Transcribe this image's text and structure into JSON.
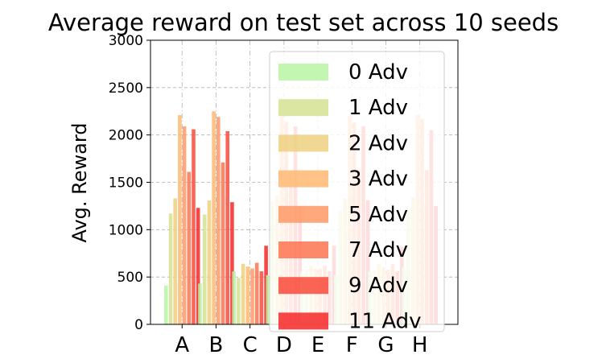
{
  "chart_data": {
    "type": "bar",
    "title": "Average reward on test set across 10 seeds",
    "xlabel": "",
    "ylabel": "Avg. Reward",
    "ylim": [
      0,
      3000
    ],
    "yticks": [
      0,
      500,
      1000,
      1500,
      2000,
      2500,
      3000
    ],
    "grid": true,
    "legend_position": "top-right",
    "categories": [
      "A",
      "B",
      "C",
      "D",
      "E",
      "F",
      "G",
      "H"
    ],
    "series": [
      {
        "name": "0 Adv",
        "color": "#b9f5a3",
        "values": [
          410,
          430,
          560,
          520,
          550,
          520,
          560,
          600
        ]
      },
      {
        "name": "1 Adv",
        "color": "#d4e291",
        "values": [
          1170,
          1160,
          490,
          1300,
          580,
          1200,
          570,
          1200
        ]
      },
      {
        "name": "2 Adv",
        "color": "#edd080",
        "values": [
          1330,
          1310,
          640,
          1360,
          620,
          1330,
          640,
          1340
        ]
      },
      {
        "name": "3 Adv",
        "color": "#ffb873",
        "values": [
          2210,
          2250,
          610,
          2200,
          590,
          2200,
          600,
          2210
        ]
      },
      {
        "name": "5 Adv",
        "color": "#ff9966",
        "values": [
          2090,
          2190,
          590,
          2140,
          590,
          2130,
          580,
          2170
        ]
      },
      {
        "name": "7 Adv",
        "color": "#fd7451",
        "values": [
          1610,
          1710,
          650,
          1620,
          620,
          1630,
          640,
          1630
        ]
      },
      {
        "name": "9 Adv",
        "color": "#f94a3a",
        "values": [
          2060,
          2040,
          560,
          2090,
          560,
          2090,
          560,
          2050
        ]
      },
      {
        "name": "11 Adv",
        "color": "#f62828",
        "values": [
          1230,
          1290,
          830,
          1250,
          830,
          1310,
          820,
          1250
        ]
      }
    ]
  }
}
